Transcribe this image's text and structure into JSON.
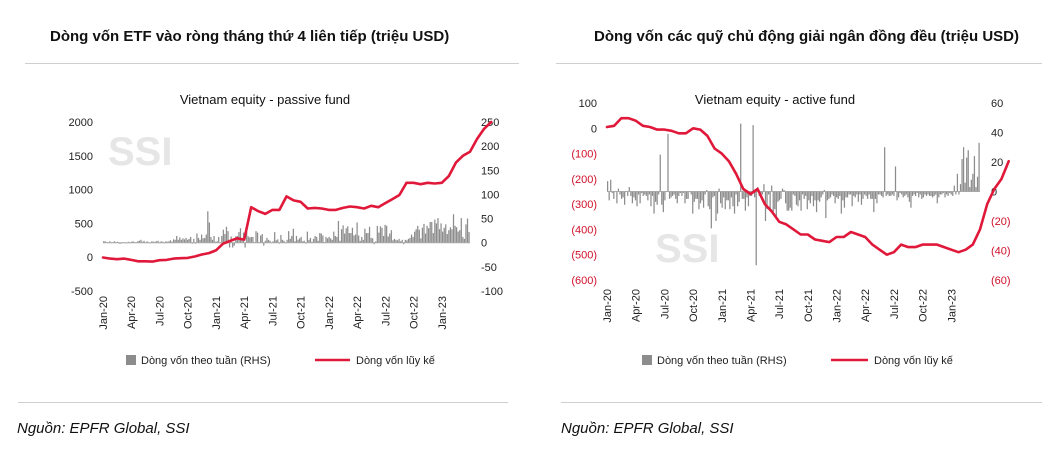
{
  "header": {
    "left_title": "Dòng vốn ETF vào ròng tháng thứ 4 liên tiếp (triệu USD)",
    "right_title": "Dòng vốn các quỹ chủ động giải ngân đồng đều (triệu USD)"
  },
  "footer": {
    "left_source": "Nguồn: EPFR Global, SSI",
    "right_source": "Nguồn: EPFR Global, SSI"
  },
  "colors": {
    "bar": "#8c8c8c",
    "line": "#e0183a",
    "neg_tick": "#d0102a"
  },
  "chart_data": [
    {
      "type": "bar+line",
      "title": "Vietnam equity - passive fund",
      "watermark": "SSI",
      "x_tick_labels": [
        "Jan-20",
        "Apr-20",
        "Jul-20",
        "Oct-20",
        "Jan-21",
        "Apr-21",
        "Jul-21",
        "Oct-21",
        "Jan-22",
        "Apr-22",
        "Jul-22",
        "Oct-22",
        "Jan-23"
      ],
      "left_axis": {
        "ticks": [
          "2000",
          "1500",
          "1000",
          "500",
          "0",
          "-500"
        ],
        "range": [
          -500,
          2000
        ]
      },
      "right_axis": {
        "ticks": [
          "250",
          "200",
          "150",
          "100",
          "50",
          "0",
          "-50",
          "-100"
        ],
        "range": [
          -100,
          250
        ]
      },
      "series": [
        {
          "name": "Dòng vốn theo tuần (RHS)",
          "type": "bar",
          "axis": "right",
          "values": [
            3,
            3,
            1,
            1,
            3,
            0,
            1,
            3,
            1,
            2,
            -2,
            -2,
            1,
            1,
            0,
            -1,
            2,
            0,
            2,
            3,
            1,
            1,
            3,
            4,
            6,
            2,
            4,
            0,
            3,
            1,
            0,
            3,
            2,
            2,
            3,
            4,
            0,
            3,
            2,
            0,
            3,
            2,
            3,
            5,
            2,
            7,
            6,
            14,
            6,
            11,
            6,
            9,
            7,
            10,
            6,
            8,
            12,
            -2,
            8,
            -2,
            19,
            10,
            6,
            17,
            9,
            10,
            17,
            65,
            42,
            12,
            6,
            14,
            2,
            3,
            12,
            1,
            14,
            27,
            18,
            33,
            24,
            -10,
            13,
            -10,
            -6,
            13,
            14,
            22,
            30,
            8,
            21,
            -10,
            23,
            13,
            11,
            12,
            12,
            1,
            24,
            21,
            1,
            15,
            18,
            -6,
            4,
            10,
            6,
            4,
            -1,
            3,
            22,
            5,
            7,
            -2,
            16,
            6,
            4,
            -1,
            6,
            24,
            8,
            14,
            29,
            3,
            14,
            6,
            9,
            12,
            3,
            4,
            -2,
            23,
            6,
            10,
            2,
            8,
            14,
            12,
            4,
            20,
            19,
            15,
            1,
            12,
            9,
            12,
            9,
            6,
            23,
            14,
            12,
            45,
            4,
            28,
            36,
            19,
            30,
            34,
            20,
            20,
            31,
            15,
            17,
            42,
            15,
            4,
            12,
            6,
            29,
            20,
            20,
            33,
            10,
            9,
            -3,
            3,
            35,
            21,
            34,
            31,
            14,
            37,
            35,
            13,
            19,
            26,
            5,
            8,
            6,
            5,
            8,
            3,
            6,
            -3,
            6,
            5,
            8,
            10,
            17,
            12,
            23,
            28,
            35,
            27,
            9,
            31,
            39,
            19,
            35,
            30,
            43,
            43,
            20,
            48,
            40,
            51,
            28,
            40,
            23,
            31,
            38,
            18,
            26,
            32,
            28,
            59,
            35,
            32,
            23,
            26,
            51,
            12,
            8,
            38,
            50,
            22
          ]
        },
        {
          "name": "Dòng vốn lũy kế",
          "type": "line",
          "axis": "left",
          "x_step": 0.25,
          "values": [
            -5,
            -20,
            -30,
            -20,
            -40,
            -60,
            -60,
            -65,
            -45,
            -40,
            -20,
            -15,
            -10,
            10,
            40,
            60,
            100,
            200,
            240,
            280,
            260,
            740,
            680,
            640,
            700,
            700,
            900,
            840,
            820,
            720,
            730,
            720,
            700,
            700,
            730,
            750,
            740,
            720,
            760,
            740,
            800,
            860,
            920,
            1100,
            1100,
            1080,
            1100,
            1090,
            1100,
            1200,
            1400,
            1500,
            1560,
            1750,
            1900,
            2000
          ]
        }
      ]
    },
    {
      "type": "bar+line",
      "title": "Vietnam equity - active fund",
      "watermark": "SSI",
      "x_tick_labels": [
        "Jan-20",
        "Apr-20",
        "Jul-20",
        "Oct-20",
        "Jan-21",
        "Apr-21",
        "Jul-21",
        "Oct-21",
        "Jan-22",
        "Apr-22",
        "Jul-22",
        "Oct-22",
        "Jan-23"
      ],
      "left_axis": {
        "ticks": [
          "100",
          "0",
          "(100)",
          "(200)",
          "(300)",
          "(400)",
          "(500)",
          "(600)"
        ],
        "range": [
          -600,
          100
        ]
      },
      "right_axis": {
        "ticks": [
          "60",
          "40",
          "20",
          "0",
          "(20)",
          "(40)",
          "(60)"
        ],
        "range": [
          -60,
          60
        ]
      },
      "series": [
        {
          "name": "Dòng vốn theo tuần (RHS)",
          "type": "bar",
          "axis": "right",
          "values": [
            7,
            -6,
            8,
            -1,
            -5,
            0,
            -8,
            2,
            -2,
            -5,
            -4,
            -9,
            0,
            -3,
            3,
            -3,
            -8,
            -4,
            -6,
            -10,
            -2,
            -8,
            -1,
            -3,
            -2,
            -3,
            -6,
            -2,
            -10,
            -3,
            -15,
            -7,
            -9,
            -2,
            25,
            -9,
            -14,
            -6,
            0,
            39,
            -5,
            -4,
            -3,
            -2,
            -5,
            -8,
            -3,
            -1,
            -3,
            -1,
            -8,
            -5,
            -5,
            0,
            -2,
            -15,
            -7,
            -5,
            -5,
            -12,
            -8,
            -6,
            -11,
            -2,
            1,
            -10,
            -12,
            -25,
            -4,
            -3,
            -20,
            -15,
            2,
            -8,
            -11,
            -4,
            -12,
            -6,
            -6,
            -12,
            -4,
            -10,
            -15,
            -2,
            -10,
            -7,
            46,
            -5,
            -5,
            -13,
            -4,
            -10,
            -3,
            -3,
            45,
            -4,
            -50,
            3,
            -3,
            -2,
            -2,
            5,
            -20,
            -12,
            -2,
            -13,
            4,
            -14,
            -12,
            -19,
            -7,
            -6,
            -5,
            2,
            1,
            -8,
            -13,
            -13,
            -11,
            -13,
            -2,
            -3,
            -9,
            -10,
            -6,
            -13,
            -2,
            -5,
            -3,
            -12,
            -6,
            -8,
            -3,
            -10,
            -6,
            -14,
            -6,
            -7,
            -4,
            -2,
            1,
            -18,
            -6,
            -5,
            -4,
            -2,
            -3,
            -8,
            -4,
            -5,
            -3,
            -15,
            -6,
            -11,
            -4,
            -4,
            -2,
            -2,
            -10,
            -3,
            -4,
            -2,
            -7,
            -2,
            -9,
            -5,
            -2,
            -3,
            -5,
            -2,
            -5,
            -5,
            -14,
            -5,
            -8,
            -2,
            -2,
            -3,
            -4,
            30,
            -3,
            -2,
            -3,
            -3,
            -2,
            -3,
            17,
            -6,
            -4,
            -1,
            -2,
            -4,
            -3,
            -2,
            -4,
            -7,
            -11,
            -3,
            -2,
            -3,
            -1,
            -4,
            -2,
            -5,
            -4,
            -2,
            -3,
            -2,
            -3,
            -3,
            -4,
            -3,
            -2,
            -8,
            -4,
            -2,
            -2,
            -1,
            -4,
            -2,
            -3,
            -1,
            -2,
            -3,
            4,
            -2,
            12,
            -2,
            5,
            22,
            30,
            6,
            23,
            28,
            3,
            8,
            12,
            24,
            3,
            10,
            33
          ]
        },
        {
          "name": "Dòng vốn lũy kế",
          "type": "line",
          "axis": "left",
          "x_step": 0.25,
          "values": [
            5,
            10,
            40,
            40,
            30,
            10,
            5,
            -5,
            -5,
            -10,
            -20,
            -20,
            0,
            -5,
            -30,
            -80,
            -100,
            -130,
            -180,
            -240,
            -260,
            -240,
            -300,
            -330,
            -370,
            -380,
            -400,
            -420,
            -420,
            -440,
            -445,
            -450,
            -430,
            -430,
            -410,
            -420,
            -430,
            -460,
            -480,
            -500,
            -490,
            -460,
            -470,
            -470,
            -460,
            -460,
            -460,
            -470,
            -480,
            -490,
            -480,
            -460,
            -400,
            -300,
            -240,
            -200,
            -130
          ]
        }
      ]
    }
  ],
  "legend": {
    "bar_label": "Dòng vốn theo tuần (RHS)",
    "line_label": "Dòng vốn lũy kế"
  }
}
